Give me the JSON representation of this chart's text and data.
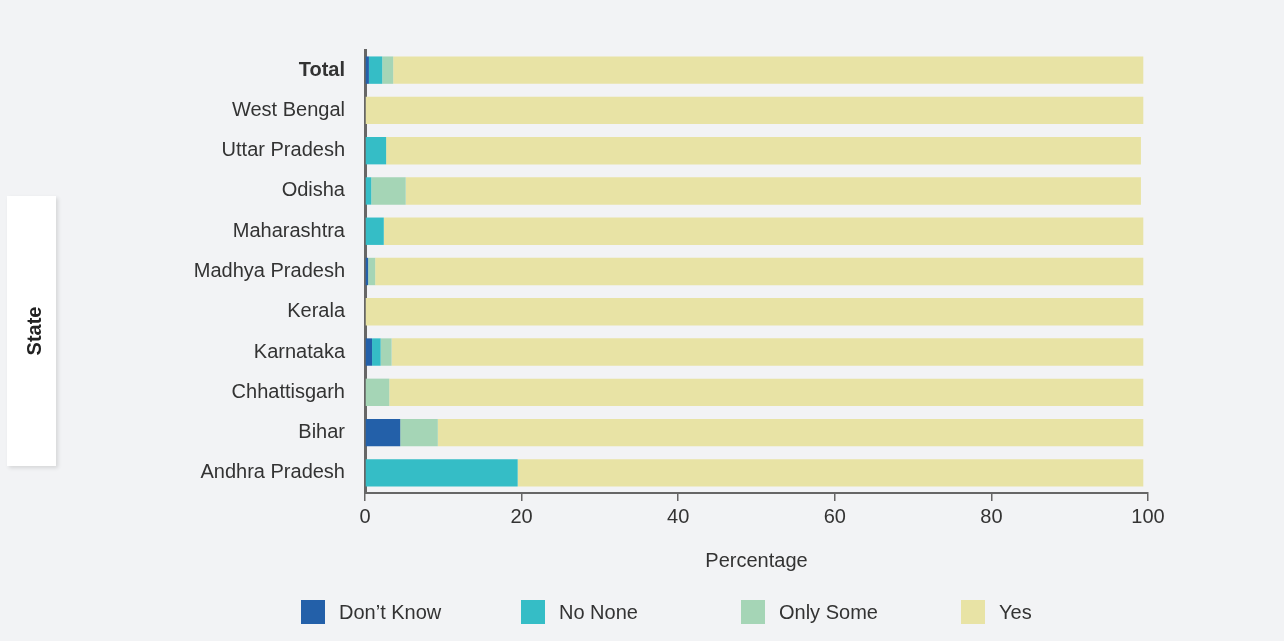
{
  "chart_data": {
    "type": "bar",
    "orientation": "horizontal",
    "stacked": true,
    "xlabel": "Percentage",
    "annotations": [
      "State"
    ],
    "categories": [
      "Total",
      "West Bengal",
      "Uttar Pradesh",
      "Odisha",
      "Maharashtra",
      "Madhya Pradesh",
      "Kerala",
      "Karnataka",
      "Chhattisgarh",
      "Bihar",
      "Andhra Pradesh"
    ],
    "series": [
      {
        "name": "Don’t Know",
        "color": "#2360a9",
        "values": [
          0.5,
          0,
          0,
          0,
          0,
          0.4,
          0,
          0.9,
          0,
          4.5,
          0
        ]
      },
      {
        "name": "No None",
        "color": "#35bdc6",
        "values": [
          1.7,
          0,
          2.7,
          0.8,
          2.4,
          0,
          0,
          1.1,
          0,
          0,
          19.5
        ]
      },
      {
        "name": "Only Some",
        "color": "#a5d5b6",
        "values": [
          1.4,
          0,
          0,
          4.4,
          0,
          0.9,
          0,
          1.4,
          3.1,
          4.8,
          0
        ]
      },
      {
        "name": "Yes",
        "color": "#e8e3a5",
        "values": [
          95.8,
          99.4,
          96.4,
          93.9,
          97.0,
          98.1,
          99.4,
          96.0,
          96.3,
          90.1,
          79.9
        ]
      }
    ],
    "xlim": [
      0,
      100
    ],
    "xticks": [
      0,
      20,
      40,
      60,
      80,
      100
    ],
    "grid": false,
    "legend": "bottom"
  }
}
